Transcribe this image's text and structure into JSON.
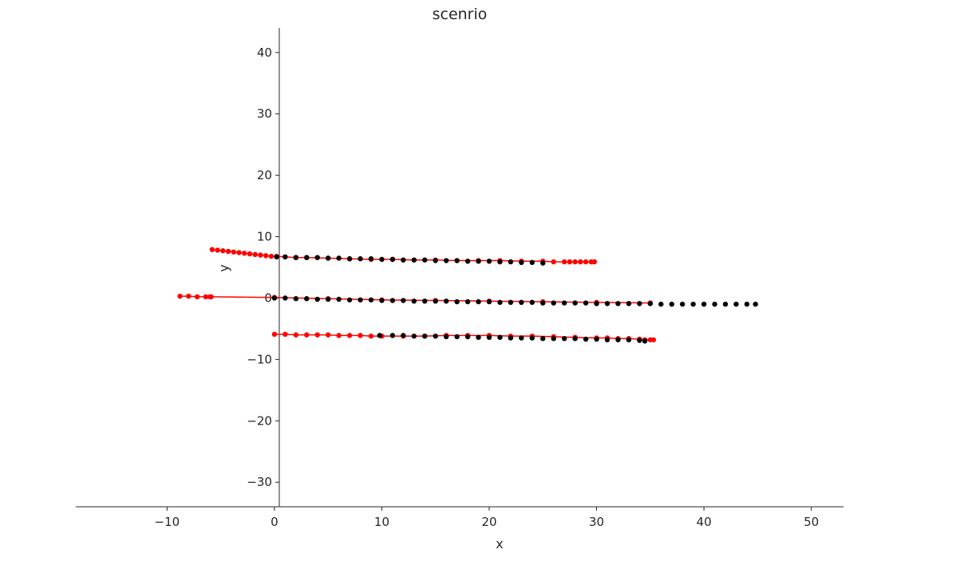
{
  "chart_data": {
    "type": "scatter",
    "title": "scenrio",
    "xlabel": "x",
    "ylabel": "y",
    "xlim": [
      -18.5,
      53
    ],
    "ylim": [
      -34,
      44
    ],
    "xticks": [
      -10,
      0,
      10,
      20,
      30,
      40,
      50
    ],
    "yticks": [
      -30,
      -20,
      -10,
      0,
      10,
      20,
      30,
      40
    ],
    "xtick_labels": [
      "−10",
      "0",
      "10",
      "20",
      "30",
      "40",
      "50"
    ],
    "ytick_labels": [
      "−30",
      "−20",
      "−10",
      "0",
      "10",
      "20",
      "30",
      "40"
    ],
    "grid": false,
    "colors": {
      "red": "#ff0000",
      "black": "#000000",
      "axis": "#262626"
    },
    "series": [
      {
        "color": "red",
        "marker": "dot",
        "line": true,
        "x": [
          -5.8,
          -5.3,
          -4.8,
          -4.3,
          -3.8,
          -3.3,
          -2.8,
          -2.3,
          -1.8,
          -1.3,
          -0.8,
          -0.3,
          0.2,
          1.0,
          2.0,
          3.0,
          5.0,
          7.0,
          9.0,
          11.0,
          13.0,
          15.0,
          17.0,
          19.0,
          21.0,
          23.0,
          25.0,
          26.0,
          27.0,
          27.5,
          28.0,
          28.5,
          29.0,
          29.5,
          29.8
        ],
        "y": [
          7.9,
          7.8,
          7.7,
          7.6,
          7.5,
          7.4,
          7.3,
          7.2,
          7.1,
          7.0,
          6.9,
          6.8,
          6.8,
          6.7,
          6.6,
          6.6,
          6.5,
          6.4,
          6.3,
          6.3,
          6.2,
          6.2,
          6.1,
          6.1,
          6.1,
          6.0,
          6.0,
          5.9,
          5.9,
          5.9,
          5.9,
          5.9,
          5.9,
          5.9,
          5.9
        ]
      },
      {
        "color": "black",
        "marker": "dot",
        "line": false,
        "x": [
          0.2,
          1,
          2,
          3,
          4,
          5,
          6,
          7,
          8,
          9,
          10,
          11,
          12,
          13,
          14,
          15,
          16,
          17,
          18,
          19,
          20,
          21,
          22,
          23,
          24,
          25
        ],
        "y": [
          6.7,
          6.7,
          6.6,
          6.6,
          6.6,
          6.5,
          6.5,
          6.4,
          6.4,
          6.4,
          6.3,
          6.3,
          6.2,
          6.2,
          6.2,
          6.1,
          6.1,
          6.1,
          6.0,
          6.0,
          6.0,
          5.9,
          5.9,
          5.8,
          5.8,
          5.7
        ]
      },
      {
        "color": "red",
        "marker": "dot",
        "line": true,
        "x": [
          -8.8,
          -8.0,
          -7.2,
          -6.4,
          -6.0,
          -5.9,
          0.0,
          5.0,
          10.0,
          15.0,
          20.0,
          25.0,
          30.0,
          35.0
        ],
        "y": [
          0.3,
          0.3,
          0.2,
          0.2,
          0.2,
          0.2,
          0.1,
          -0.1,
          -0.3,
          -0.4,
          -0.5,
          -0.6,
          -0.7,
          -0.8
        ]
      },
      {
        "color": "black",
        "marker": "dot",
        "line": false,
        "x": [
          0,
          1,
          2,
          3,
          4,
          5,
          6,
          7,
          8,
          9,
          10,
          11,
          12,
          13,
          14,
          15,
          16,
          17,
          18,
          19,
          20,
          21,
          22,
          23,
          24,
          25,
          26,
          27,
          28,
          29,
          30,
          31,
          32,
          33,
          34,
          35,
          36,
          37,
          38,
          39,
          40,
          41,
          42,
          43,
          44,
          44.8
        ],
        "y": [
          0.0,
          0.0,
          -0.1,
          -0.1,
          -0.2,
          -0.2,
          -0.2,
          -0.3,
          -0.3,
          -0.3,
          -0.4,
          -0.4,
          -0.4,
          -0.5,
          -0.5,
          -0.5,
          -0.5,
          -0.6,
          -0.6,
          -0.6,
          -0.6,
          -0.7,
          -0.7,
          -0.7,
          -0.7,
          -0.8,
          -0.8,
          -0.8,
          -0.8,
          -0.8,
          -0.9,
          -0.9,
          -0.9,
          -0.9,
          -0.9,
          -0.9,
          -1.0,
          -1.0,
          -1.0,
          -1.0,
          -1.0,
          -1.0,
          -1.0,
          -1.0,
          -1.0,
          -1.0
        ]
      },
      {
        "color": "red",
        "marker": "dot",
        "line": true,
        "x": [
          0,
          1,
          2,
          3,
          4,
          5,
          6,
          7,
          8,
          9,
          10,
          12,
          14,
          16,
          18,
          20,
          22,
          24,
          26,
          28,
          30,
          31,
          32,
          33,
          34,
          34.5,
          35,
          35.3
        ],
        "y": [
          -5.9,
          -5.9,
          -6.0,
          -6.0,
          -6.0,
          -6.0,
          -6.1,
          -6.1,
          -6.1,
          -6.2,
          -6.2,
          -6.2,
          -6.2,
          -6.1,
          -6.1,
          -6.1,
          -6.2,
          -6.2,
          -6.3,
          -6.4,
          -6.5,
          -6.5,
          -6.6,
          -6.6,
          -6.7,
          -6.8,
          -6.8,
          -6.8
        ]
      },
      {
        "color": "black",
        "marker": "dot",
        "line": false,
        "x": [
          9.8,
          11,
          12,
          13,
          14,
          15,
          16,
          17,
          18,
          19,
          20,
          21,
          22,
          23,
          24,
          25,
          26,
          27,
          28,
          29,
          30,
          31,
          32,
          33,
          34,
          34.5
        ],
        "y": [
          -6.1,
          -6.1,
          -6.1,
          -6.2,
          -6.2,
          -6.2,
          -6.3,
          -6.3,
          -6.3,
          -6.4,
          -6.4,
          -6.4,
          -6.5,
          -6.5,
          -6.5,
          -6.6,
          -6.6,
          -6.6,
          -6.6,
          -6.7,
          -6.7,
          -6.8,
          -6.8,
          -6.8,
          -6.9,
          -7.0
        ]
      }
    ]
  }
}
